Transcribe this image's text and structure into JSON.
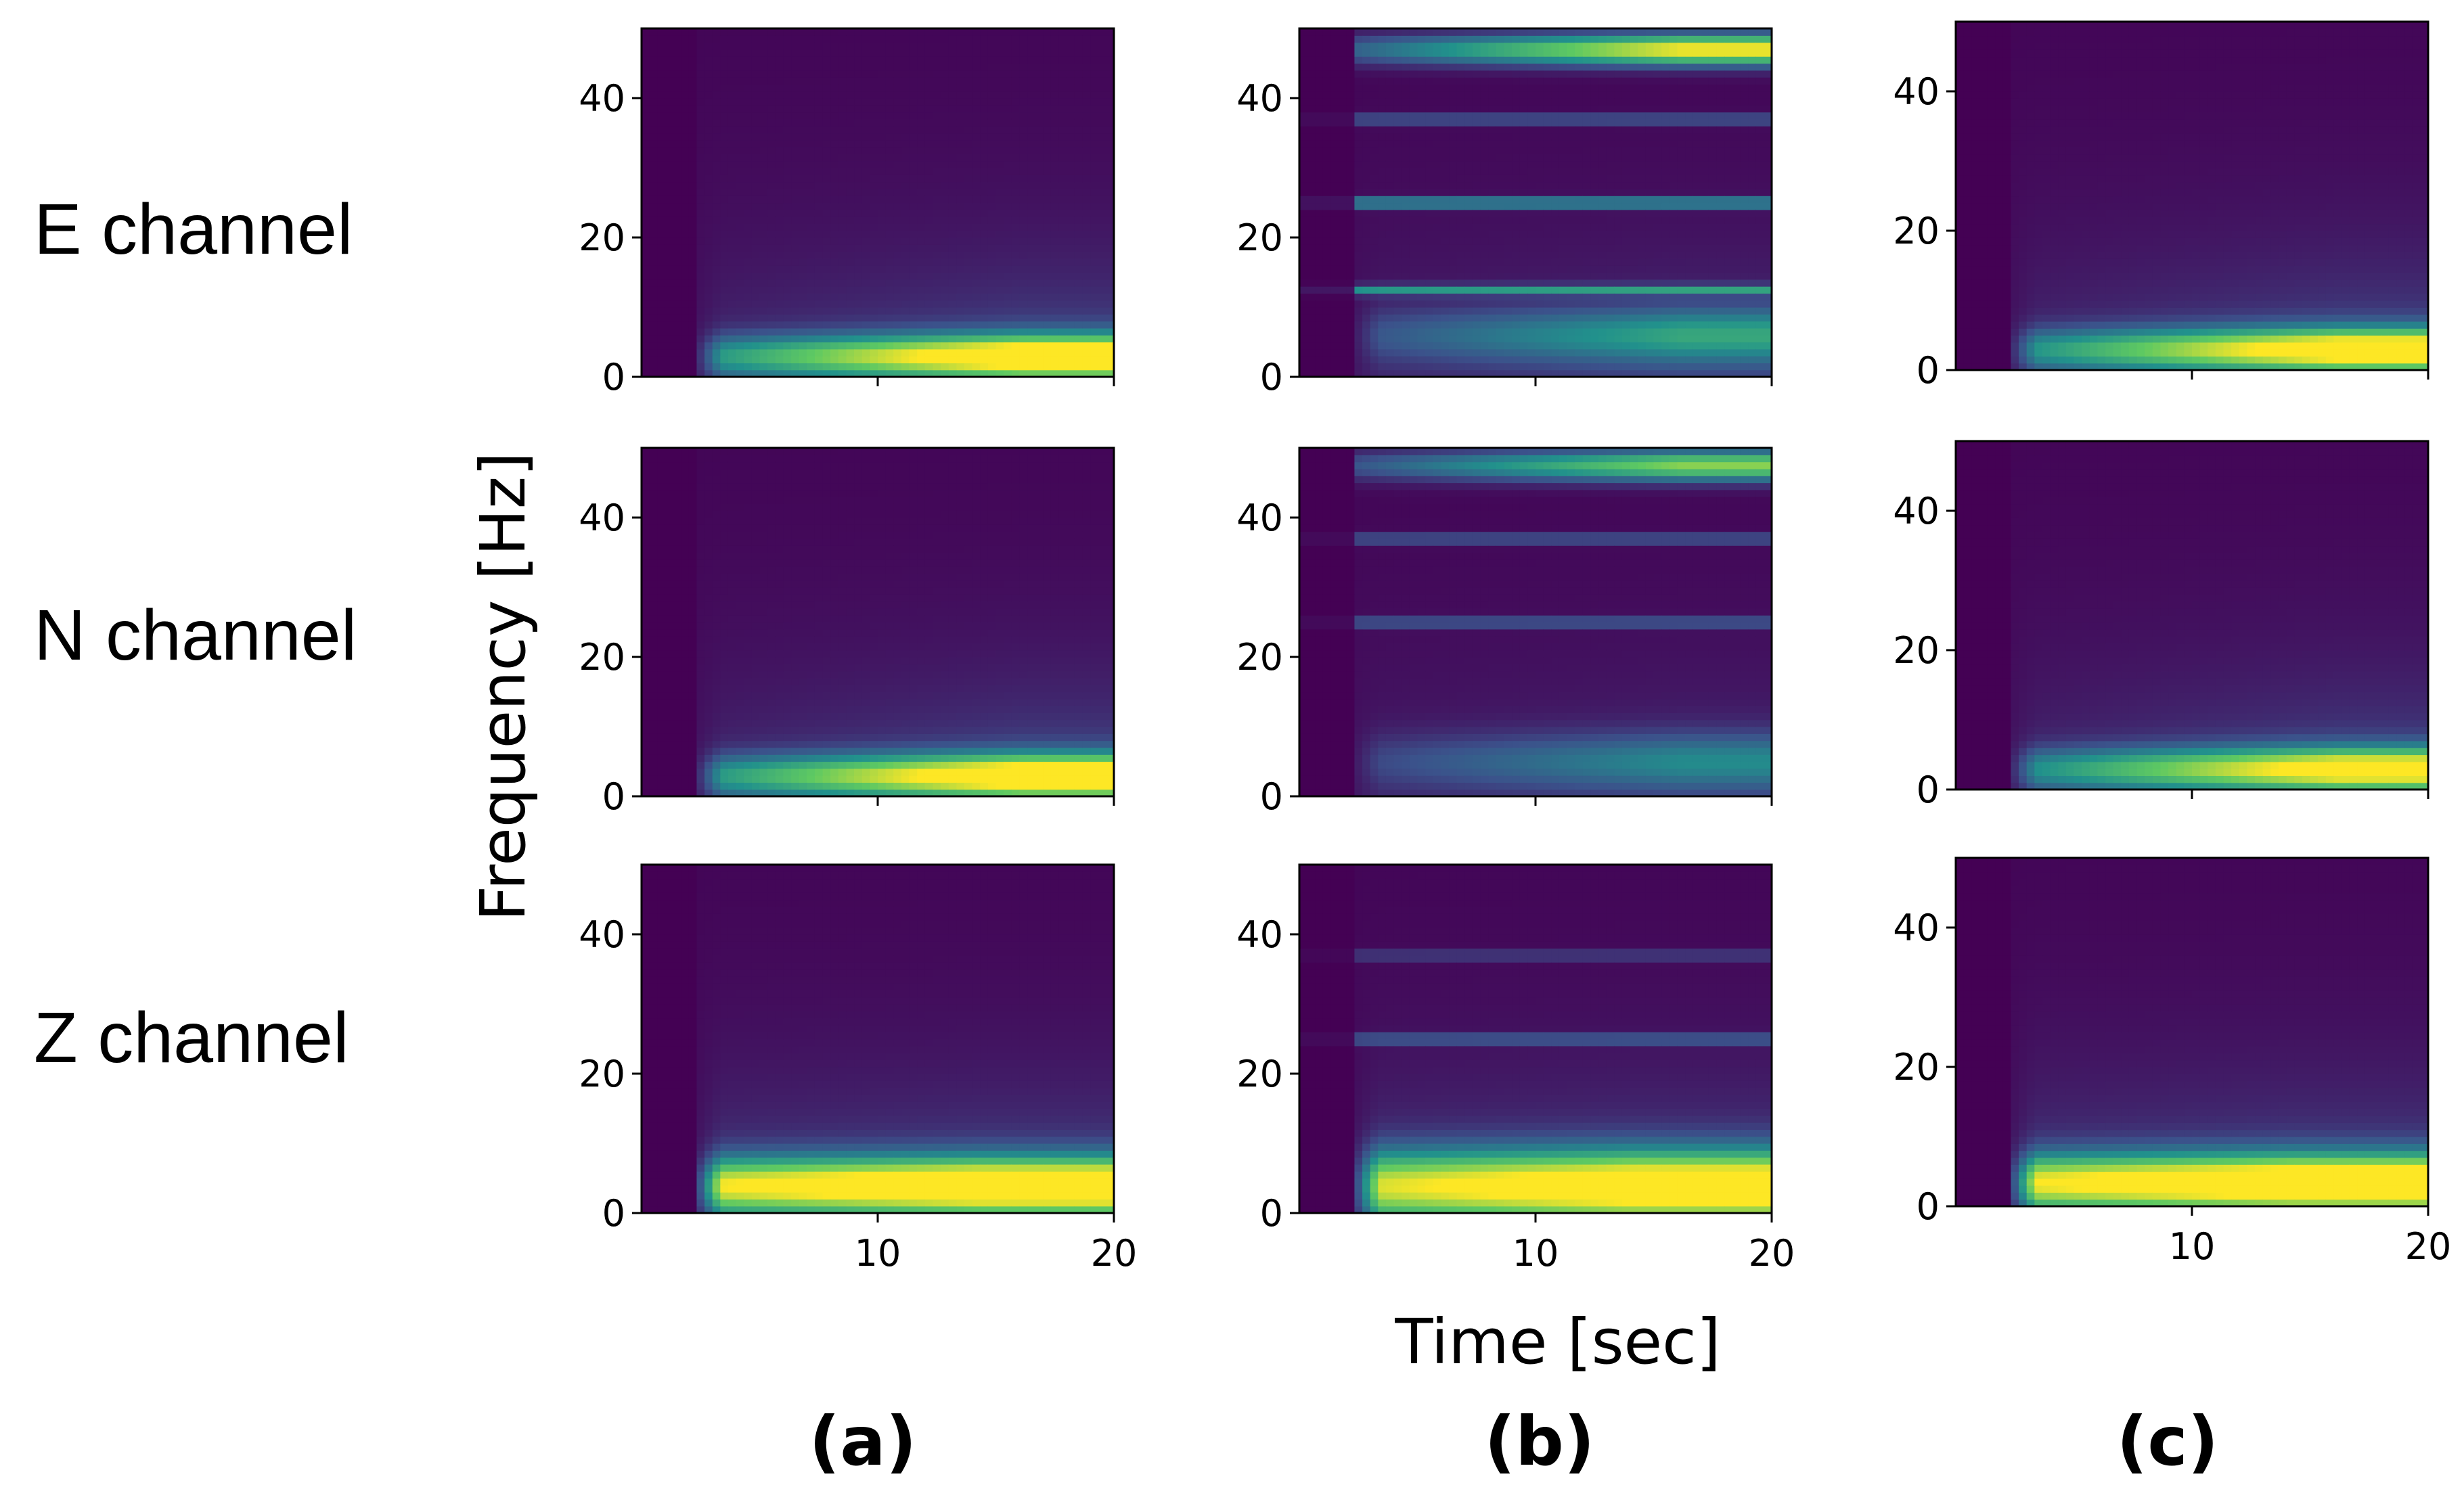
{
  "chart_data": {
    "type": "heatmap",
    "description_grid": "3 rows (channels) x 3 columns (cases) of spectrograms",
    "xlabel": "Time [sec]",
    "ylabel": "Frequency [Hz]",
    "xlim": [
      0,
      20
    ],
    "ylim": [
      0,
      50
    ],
    "xticks": [
      10,
      20
    ],
    "yticks": [
      0,
      20,
      40
    ],
    "colormap": "viridis",
    "colormap_stops": [
      "#440154",
      "#3b528b",
      "#21918c",
      "#5ec962",
      "#fde725"
    ],
    "rows": [
      {
        "label": "E channel"
      },
      {
        "label": "N channel"
      },
      {
        "label": "Z channel"
      }
    ],
    "columns": [
      {
        "label": "(a)"
      },
      {
        "label": "(b)"
      },
      {
        "label": "(c)"
      }
    ],
    "panels": [
      {
        "row": 0,
        "col": 0,
        "onset_s": 2.2,
        "bands": [
          {
            "center_hz": 3,
            "width_hz": 3,
            "peak": 1.0,
            "grow": true
          }
        ],
        "lines": [],
        "top_band": null
      },
      {
        "row": 0,
        "col": 1,
        "onset_s": 2.2,
        "bands": [
          {
            "center_hz": 6,
            "width_hz": 4,
            "peak": 0.45,
            "grow": true
          }
        ],
        "lines": [
          {
            "hz": 12.5,
            "level": 0.45
          },
          {
            "hz": 25,
            "level": 0.55
          },
          {
            "hz": 37,
            "level": 0.3
          }
        ],
        "top_band": {
          "center_hz": 47,
          "peak": 1.0
        }
      },
      {
        "row": 0,
        "col": 2,
        "onset_s": 2.2,
        "bands": [
          {
            "center_hz": 3,
            "width_hz": 3,
            "peak": 0.95,
            "grow": true
          }
        ],
        "lines": [],
        "top_band": null
      },
      {
        "row": 1,
        "col": 0,
        "onset_s": 2.2,
        "bands": [
          {
            "center_hz": 3,
            "width_hz": 3,
            "peak": 1.0,
            "grow": true
          }
        ],
        "lines": [],
        "top_band": null
      },
      {
        "row": 1,
        "col": 1,
        "onset_s": 2.2,
        "bands": [
          {
            "center_hz": 5,
            "width_hz": 4,
            "peak": 0.35,
            "grow": true
          }
        ],
        "lines": [
          {
            "hz": 25,
            "level": 0.3
          },
          {
            "hz": 37,
            "level": 0.3
          }
        ],
        "top_band": {
          "center_hz": 47.5,
          "peak": 0.8
        }
      },
      {
        "row": 1,
        "col": 2,
        "onset_s": 2.2,
        "bands": [
          {
            "center_hz": 3,
            "width_hz": 3,
            "peak": 0.9,
            "grow": true
          }
        ],
        "lines": [],
        "top_band": null
      },
      {
        "row": 2,
        "col": 0,
        "onset_s": 2.2,
        "bands": [
          {
            "center_hz": 4,
            "width_hz": 4,
            "peak": 1.0,
            "grow": false
          }
        ],
        "lines": [],
        "top_band": null
      },
      {
        "row": 2,
        "col": 1,
        "onset_s": 2.2,
        "bands": [
          {
            "center_hz": 4,
            "width_hz": 5,
            "peak": 0.95,
            "grow": false
          }
        ],
        "lines": [
          {
            "hz": 25,
            "level": 0.3
          },
          {
            "hz": 37,
            "level": 0.2
          }
        ],
        "top_band": null
      },
      {
        "row": 2,
        "col": 2,
        "onset_s": 2.2,
        "bands": [
          {
            "center_hz": 3.5,
            "width_hz": 4,
            "peak": 1.0,
            "grow": false
          }
        ],
        "lines": [],
        "top_band": null
      }
    ]
  }
}
